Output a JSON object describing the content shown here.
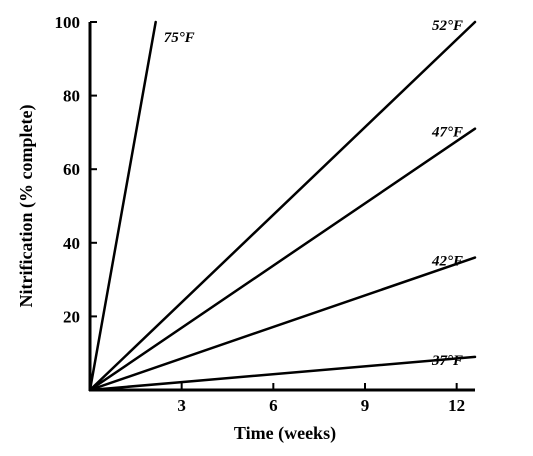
{
  "chart_data": {
    "type": "line",
    "title": "",
    "xlabel": "Time (weeks)",
    "ylabel": "Nitrification (% complete)",
    "xlim": [
      0,
      12.6
    ],
    "ylim": [
      0,
      100
    ],
    "x_ticks": [
      "3",
      "6",
      "9",
      "12"
    ],
    "y_ticks": [
      "20",
      "40",
      "60",
      "80",
      "100"
    ],
    "grid": false,
    "legend": "none",
    "line_color": "#000000",
    "series": [
      {
        "name": "75°F",
        "x": [
          0,
          2.15
        ],
        "y": [
          0,
          100
        ]
      },
      {
        "name": "52°F",
        "x": [
          0,
          12.6
        ],
        "y": [
          0,
          100
        ]
      },
      {
        "name": "47°F",
        "x": [
          0,
          12.6
        ],
        "y": [
          0,
          71
        ]
      },
      {
        "name": "42°F",
        "x": [
          0,
          12.6
        ],
        "y": [
          0,
          36
        ]
      },
      {
        "name": "37°F",
        "x": [
          0,
          12.6
        ],
        "y": [
          0,
          9
        ]
      }
    ]
  }
}
